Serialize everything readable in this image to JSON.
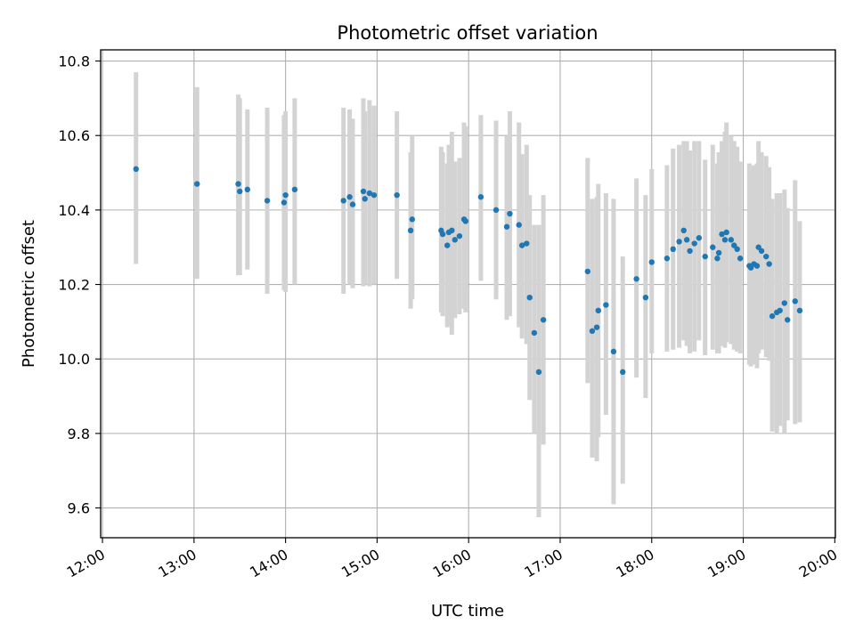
{
  "chart_data": {
    "type": "scatter",
    "title": "Photometric offset variation",
    "xlabel": "UTC time",
    "ylabel": "Photometric offset",
    "x_unit": "UTC",
    "xlim": [
      "12:00",
      "20:00"
    ],
    "ylim": [
      9.52,
      10.83
    ],
    "grid": true,
    "x_ticks": [
      "12:00",
      "13:00",
      "14:00",
      "15:00",
      "16:00",
      "17:00",
      "18:00",
      "19:00",
      "20:00"
    ],
    "y_ticks": [
      "9.6",
      "9.8",
      "10.0",
      "10.2",
      "10.4",
      "10.6",
      "10.8"
    ],
    "colors": {
      "point": "#1f77b4",
      "errorbar": "#d3d3d3",
      "grid": "#b0b0b0"
    },
    "series": [
      {
        "x": [
          "12:22",
          "13:02",
          "13:29",
          "13:30",
          "13:35",
          "13:48",
          "13:59",
          "14:00",
          "14:06",
          "14:38",
          "14:42",
          "14:44",
          "14:51",
          "14:52",
          "14:55",
          "14:58",
          "15:13",
          "15:22",
          "15:23",
          "15:42",
          "15:43",
          "15:46",
          "15:47",
          "15:49",
          "15:51",
          "15:54",
          "15:57",
          "15:58",
          "16:08",
          "16:18",
          "16:25",
          "16:27",
          "16:33",
          "16:35",
          "16:38",
          "16:40",
          "16:43",
          "16:46",
          "16:49",
          "17:18",
          "17:21",
          "17:24",
          "17:25",
          "17:30",
          "17:35",
          "17:41",
          "17:50",
          "17:56",
          "18:00",
          "18:10",
          "18:14",
          "18:18",
          "18:21",
          "18:23",
          "18:25",
          "18:28",
          "18:31",
          "18:35",
          "18:40",
          "18:43",
          "18:44",
          "18:46",
          "18:48",
          "18:49",
          "18:52",
          "18:54",
          "18:56",
          "18:58",
          "19:04",
          "19:05",
          "19:07",
          "19:09",
          "19:10",
          "19:12",
          "19:15",
          "19:17",
          "19:19",
          "19:22",
          "19:24",
          "19:27",
          "19:29",
          "19:34",
          "19:37"
        ],
        "y": [
          10.51,
          10.47,
          10.47,
          10.45,
          10.455,
          10.425,
          10.42,
          10.44,
          10.455,
          10.425,
          10.435,
          10.415,
          10.45,
          10.43,
          10.445,
          10.44,
          10.44,
          10.345,
          10.375,
          10.345,
          10.335,
          10.305,
          10.34,
          10.345,
          10.32,
          10.33,
          10.375,
          10.37,
          10.435,
          10.4,
          10.355,
          10.39,
          10.36,
          10.305,
          10.31,
          10.165,
          10.07,
          9.965,
          10.105,
          10.235,
          10.075,
          10.085,
          10.13,
          10.145,
          10.02,
          9.965,
          10.215,
          10.165,
          10.26,
          10.27,
          10.295,
          10.315,
          10.345,
          10.32,
          10.29,
          10.31,
          10.325,
          10.275,
          10.3,
          10.27,
          10.285,
          10.335,
          10.32,
          10.34,
          10.32,
          10.305,
          10.295,
          10.27,
          10.25,
          10.245,
          10.255,
          10.25,
          10.3,
          10.29,
          10.275,
          10.255,
          10.115,
          10.125,
          10.13,
          10.15,
          10.105,
          10.155,
          10.13
        ],
        "err_low": [
          10.255,
          10.215,
          10.225,
          10.225,
          10.24,
          10.175,
          10.185,
          10.18,
          10.2,
          10.175,
          10.2,
          10.19,
          10.195,
          10.2,
          10.195,
          10.2,
          10.215,
          10.135,
          10.16,
          10.125,
          10.115,
          10.085,
          10.09,
          10.065,
          10.11,
          10.12,
          10.135,
          10.125,
          10.21,
          10.16,
          10.105,
          10.115,
          10.085,
          10.055,
          10.04,
          9.89,
          9.8,
          9.575,
          9.77,
          9.935,
          9.735,
          9.725,
          9.79,
          9.85,
          9.61,
          9.665,
          9.95,
          9.895,
          10.015,
          10.02,
          10.025,
          10.03,
          10.05,
          10.035,
          10.015,
          10.02,
          10.05,
          10.01,
          10.025,
          10.015,
          10.015,
          10.035,
          10.03,
          10.045,
          10.04,
          10.025,
          10.02,
          10.015,
          9.985,
          9.98,
          9.985,
          9.975,
          10.015,
          10.025,
          10.005,
          9.995,
          9.805,
          9.8,
          9.82,
          9.8,
          9.835,
          9.825,
          9.83
        ],
        "err_high": [
          10.77,
          10.73,
          10.71,
          10.7,
          10.67,
          10.675,
          10.655,
          10.665,
          10.7,
          10.675,
          10.67,
          10.645,
          10.7,
          10.665,
          10.695,
          10.68,
          10.665,
          10.555,
          10.6,
          10.57,
          10.555,
          10.525,
          10.575,
          10.61,
          10.53,
          10.54,
          10.635,
          10.625,
          10.655,
          10.64,
          10.6,
          10.665,
          10.635,
          10.55,
          10.575,
          10.44,
          10.36,
          10.36,
          10.44,
          10.54,
          10.43,
          10.435,
          10.47,
          10.445,
          10.43,
          10.275,
          10.485,
          10.44,
          10.51,
          10.52,
          10.565,
          10.575,
          10.585,
          10.585,
          10.56,
          10.585,
          10.585,
          10.535,
          10.575,
          10.525,
          10.555,
          10.585,
          10.61,
          10.635,
          10.6,
          10.585,
          10.57,
          10.53,
          10.525,
          10.51,
          10.52,
          10.525,
          10.585,
          10.555,
          10.545,
          10.515,
          10.43,
          10.445,
          10.445,
          10.455,
          10.405,
          10.48,
          10.37
        ]
      }
    ]
  }
}
